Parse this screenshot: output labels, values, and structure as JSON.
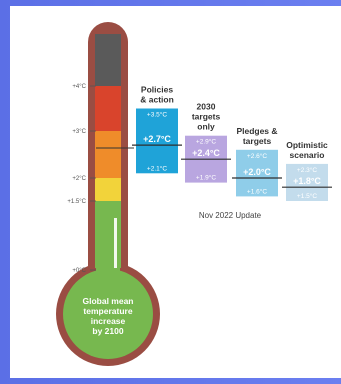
{
  "chart_data": {
    "type": "range-bar",
    "y_ticks": [
      "+0°C",
      "+1.5°C",
      "+2°C",
      "+3°C",
      "+4°C"
    ],
    "y_tick_values": [
      0,
      1.5,
      2,
      3,
      4
    ],
    "bulb_label": [
      "Global mean",
      "temperature",
      "increase",
      "by 2100"
    ],
    "update_label": "Nov 2022 Update",
    "scenarios": [
      {
        "label": [
          "Policies",
          "& action"
        ],
        "low": 2.1,
        "mid": 2.7,
        "high": 3.5,
        "low_label": "+2.1°C",
        "mid_label": "+2.7°C",
        "high_label": "+3.5°C",
        "color": "#1fa3d8"
      },
      {
        "label": [
          "2030",
          "targets",
          "only"
        ],
        "low": 1.9,
        "mid": 2.4,
        "high": 2.9,
        "low_label": "+1.9°C",
        "mid_label": "+2.4°C",
        "high_label": "+2.9°C",
        "color": "#b9a6e0"
      },
      {
        "label": [
          "Pledges &",
          "targets"
        ],
        "low": 1.6,
        "mid": 2.0,
        "high": 2.6,
        "low_label": "+1.6°C",
        "mid_label": "+2.0°C",
        "high_label": "+2.6°C",
        "color": "#8fcde9"
      },
      {
        "label": [
          "Optimistic",
          "scenario"
        ],
        "low": 1.5,
        "mid": 1.8,
        "high": 2.3,
        "low_label": "+1.5°C",
        "mid_label": "+1.8°C",
        "high_label": "+2.3°C",
        "color": "#c3dcec"
      }
    ]
  }
}
